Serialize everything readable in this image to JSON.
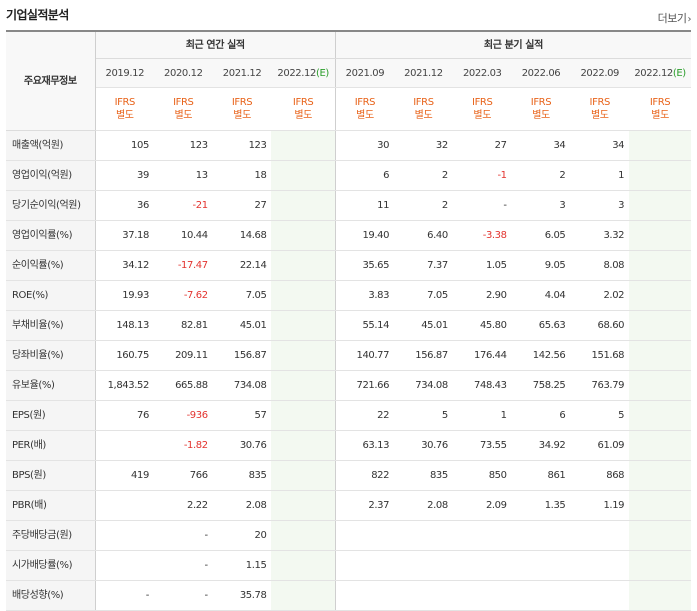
{
  "title": "기업실적분석",
  "more_label": "더보기",
  "header": {
    "label_col": "주요재무정보",
    "annual_group": "최근 연간 실적",
    "quarter_group": "최근 분기 실적",
    "annual_periods": [
      "2019.12",
      "2020.12",
      "2021.12",
      "2022.12"
    ],
    "annual_est_suffix": "(E)",
    "quarter_periods": [
      "2021.09",
      "2021.12",
      "2022.03",
      "2022.06",
      "2022.09",
      "2022.12"
    ],
    "quarter_est_suffix": "(E)",
    "ifrs": "IFRS",
    "separate": "별도"
  },
  "rows": [
    {
      "label": "매출액(억원)",
      "annual": [
        "105",
        "123",
        "123",
        ""
      ],
      "quarter": [
        "30",
        "32",
        "27",
        "34",
        "34",
        ""
      ]
    },
    {
      "label": "영업이익(억원)",
      "annual": [
        "39",
        "13",
        "18",
        ""
      ],
      "quarter": [
        "6",
        "2",
        "-1",
        "2",
        "1",
        ""
      ]
    },
    {
      "label": "당기순이익(억원)",
      "annual": [
        "36",
        "-21",
        "27",
        ""
      ],
      "quarter": [
        "11",
        "2",
        "-",
        "3",
        "3",
        ""
      ]
    },
    {
      "label": "영업이익률(%)",
      "annual": [
        "37.18",
        "10.44",
        "14.68",
        ""
      ],
      "quarter": [
        "19.40",
        "6.40",
        "-3.38",
        "6.05",
        "3.32",
        ""
      ]
    },
    {
      "label": "순이익률(%)",
      "annual": [
        "34.12",
        "-17.47",
        "22.14",
        ""
      ],
      "quarter": [
        "35.65",
        "7.37",
        "1.05",
        "9.05",
        "8.08",
        ""
      ]
    },
    {
      "label": "ROE(%)",
      "annual": [
        "19.93",
        "-7.62",
        "7.05",
        ""
      ],
      "quarter": [
        "3.83",
        "7.05",
        "2.90",
        "4.04",
        "2.02",
        ""
      ]
    },
    {
      "label": "부채비율(%)",
      "annual": [
        "148.13",
        "82.81",
        "45.01",
        ""
      ],
      "quarter": [
        "55.14",
        "45.01",
        "45.80",
        "65.63",
        "68.60",
        ""
      ]
    },
    {
      "label": "당좌비율(%)",
      "annual": [
        "160.75",
        "209.11",
        "156.87",
        ""
      ],
      "quarter": [
        "140.77",
        "156.87",
        "176.44",
        "142.56",
        "151.68",
        ""
      ]
    },
    {
      "label": "유보율(%)",
      "annual": [
        "1,843.52",
        "665.88",
        "734.08",
        ""
      ],
      "quarter": [
        "721.66",
        "734.08",
        "748.43",
        "758.25",
        "763.79",
        ""
      ]
    },
    {
      "label": "EPS(원)",
      "annual": [
        "76",
        "-936",
        "57",
        ""
      ],
      "quarter": [
        "22",
        "5",
        "1",
        "6",
        "5",
        ""
      ]
    },
    {
      "label": "PER(배)",
      "annual": [
        "",
        "-1.82",
        "30.76",
        ""
      ],
      "quarter": [
        "63.13",
        "30.76",
        "73.55",
        "34.92",
        "61.09",
        ""
      ]
    },
    {
      "label": "BPS(원)",
      "annual": [
        "419",
        "766",
        "835",
        ""
      ],
      "quarter": [
        "822",
        "835",
        "850",
        "861",
        "868",
        ""
      ]
    },
    {
      "label": "PBR(배)",
      "annual": [
        "",
        "2.22",
        "2.08",
        ""
      ],
      "quarter": [
        "2.37",
        "2.08",
        "2.09",
        "1.35",
        "1.19",
        ""
      ]
    },
    {
      "label": "주당배당금(원)",
      "annual": [
        "",
        "-",
        "20",
        ""
      ],
      "quarter": [
        "",
        "",
        "",
        "",
        "",
        ""
      ]
    },
    {
      "label": "시가배당률(%)",
      "annual": [
        "",
        "-",
        "1.15",
        ""
      ],
      "quarter": [
        "",
        "",
        "",
        "",
        "",
        ""
      ]
    },
    {
      "label": "배당성향(%)",
      "annual": [
        "-",
        "-",
        "35.78",
        ""
      ],
      "quarter": [
        "",
        "",
        "",
        "",
        "",
        ""
      ]
    }
  ],
  "colors": {
    "negative": "#e3342f",
    "ifrs": "#e8631a",
    "estimate": "#2a9d2a",
    "estimate_bg": "#f3f9f1"
  }
}
